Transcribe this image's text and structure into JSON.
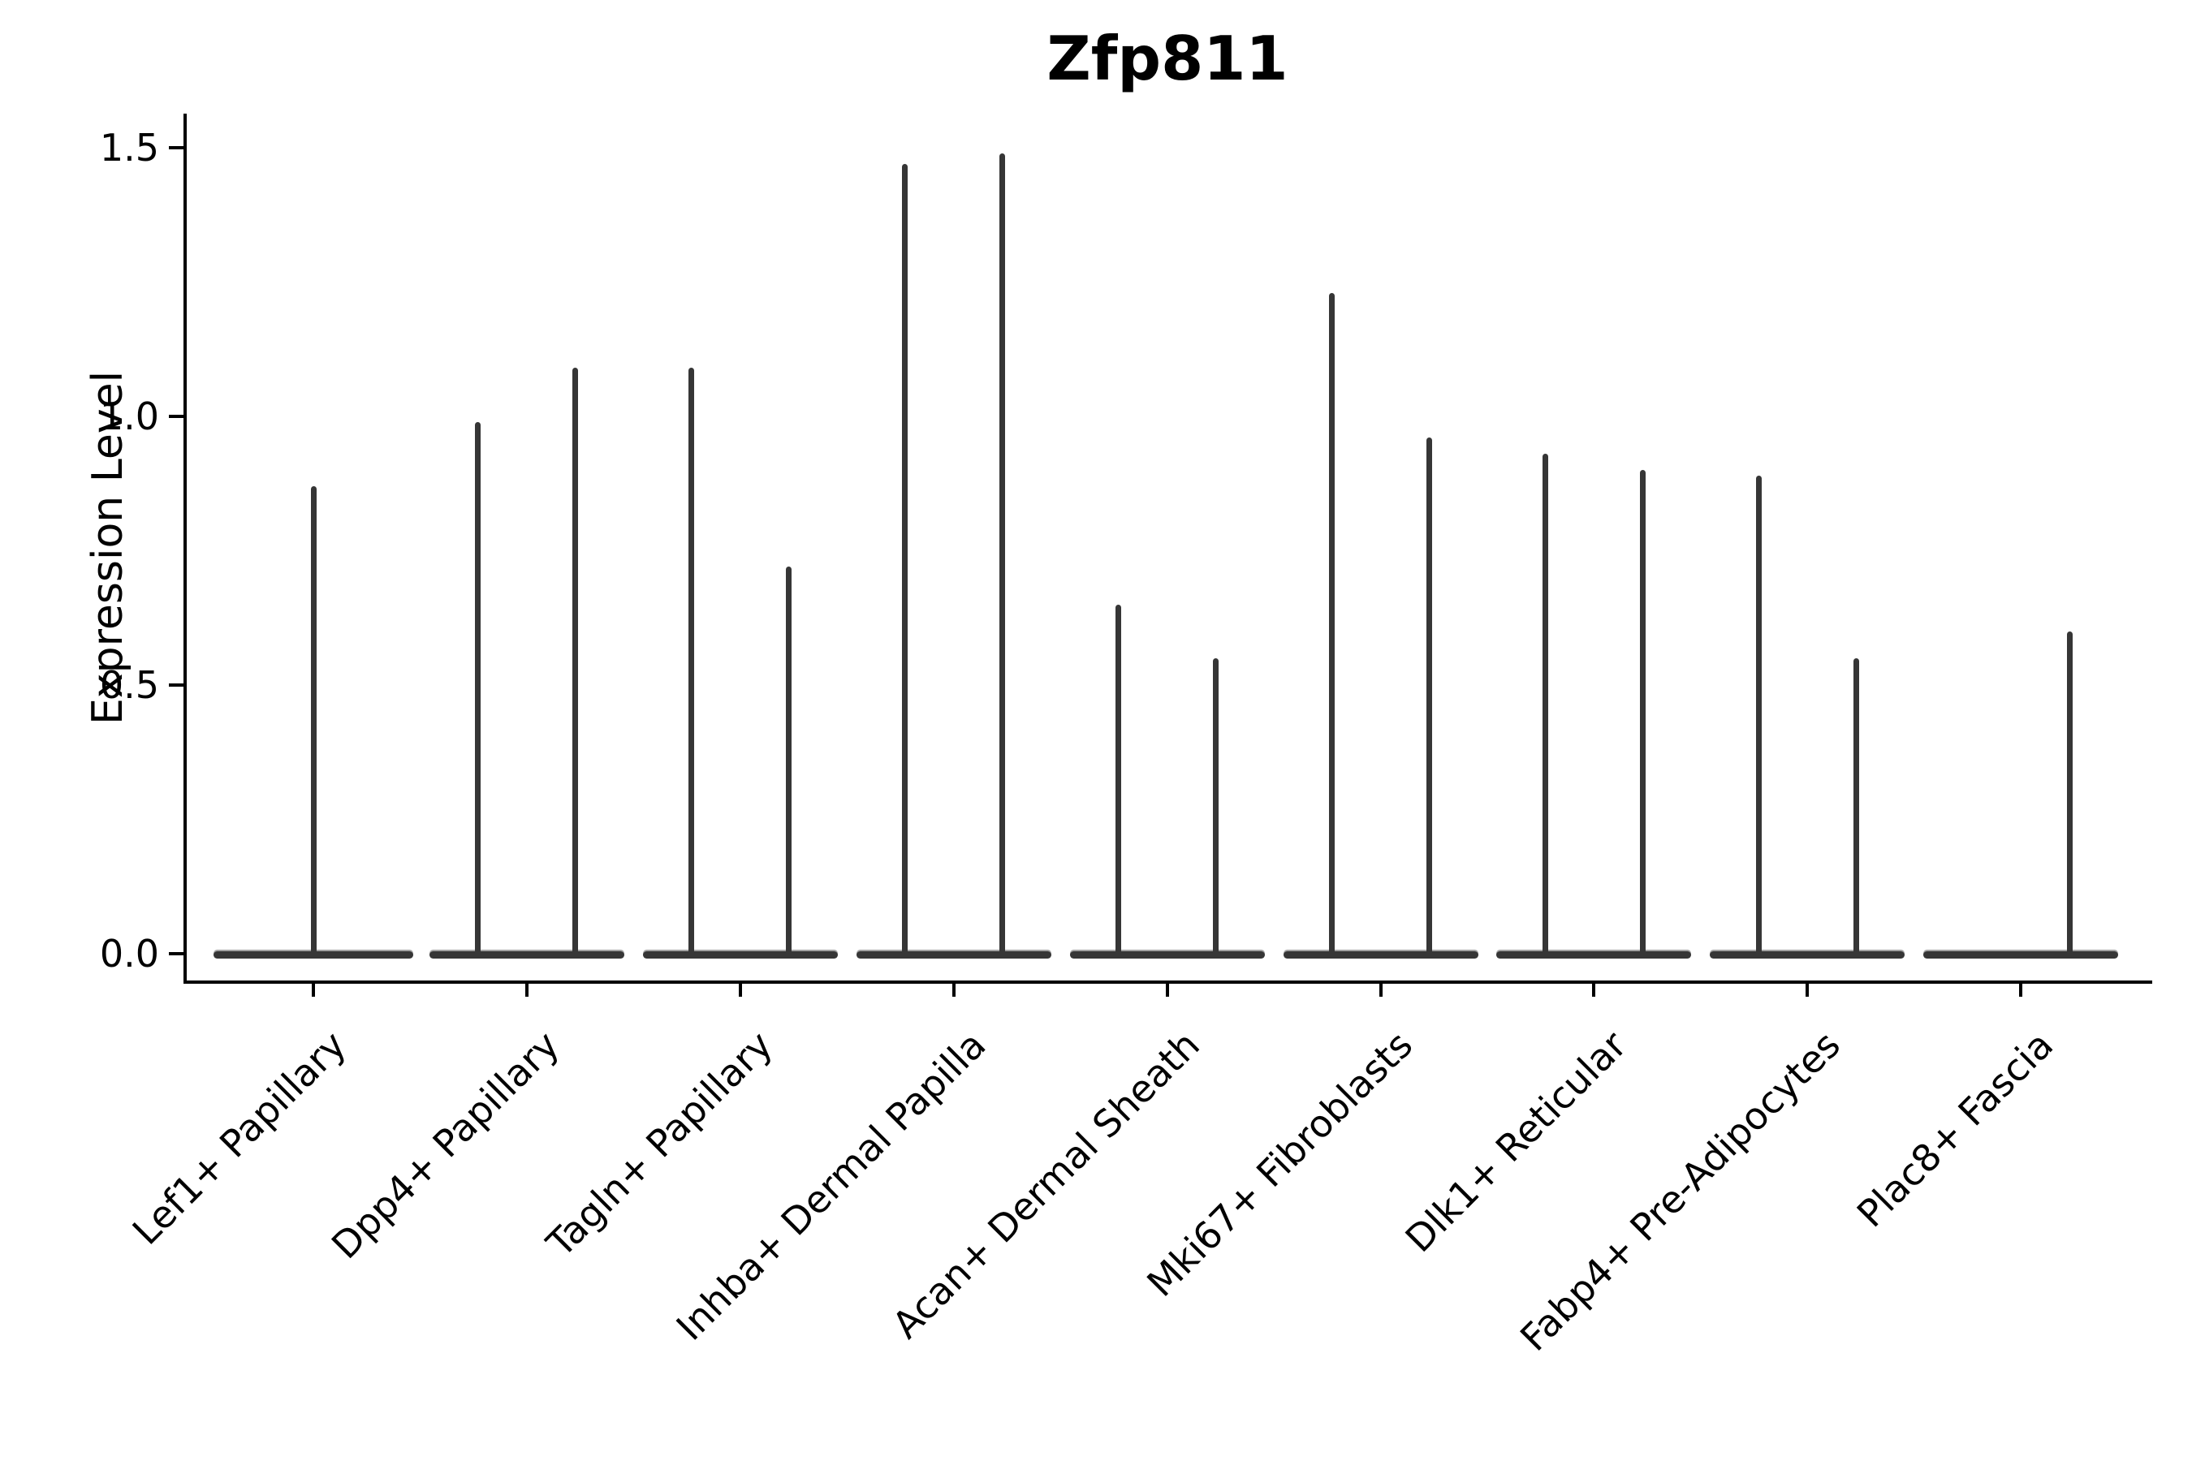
{
  "figure": {
    "title": "Zfp811",
    "ylabel": "Expression Level"
  },
  "chart_data": {
    "type": "violin",
    "title": "Zfp811",
    "xlabel": "",
    "ylabel": "Expression Level",
    "ylim": [
      -0.053,
      1.563
    ],
    "yticks": [
      "0.0",
      "0.5",
      "1.0",
      "1.5"
    ],
    "ytick_values": [
      0.0,
      0.5,
      1.0,
      1.5
    ],
    "grid": false,
    "legend": "none",
    "description": "Violin plot of Zfp811 expression per fibroblast cell-type cluster; most cells are zero (flat wide base at 0) with a thin density spike rising to the maximum expression value. Most categories contain two side-by-side violins.",
    "categories": [
      "Lef1+ Papillary",
      "Dpp4+ Papillary",
      "Tagln+ Papillary",
      "Inhba+ Dermal Papilla",
      "Acan+ Dermal Sheath",
      "Mki67+ Fibroblasts",
      "Dlk1+ Reticular",
      "Fabp4+ Pre-Adipocytes",
      "Plac8+ Fascia"
    ],
    "violin_max_values": [
      [
        0.87
      ],
      [
        0.99,
        1.09
      ],
      [
        1.09,
        0.72
      ],
      [
        1.47,
        1.49
      ],
      [
        0.65,
        0.55
      ],
      [
        1.23,
        0.96
      ],
      [
        0.93,
        0.9
      ],
      [
        0.89,
        0.55
      ],
      [
        0.0,
        0.6
      ]
    ],
    "violin_color": "#363636",
    "axis_color": "#000000"
  }
}
